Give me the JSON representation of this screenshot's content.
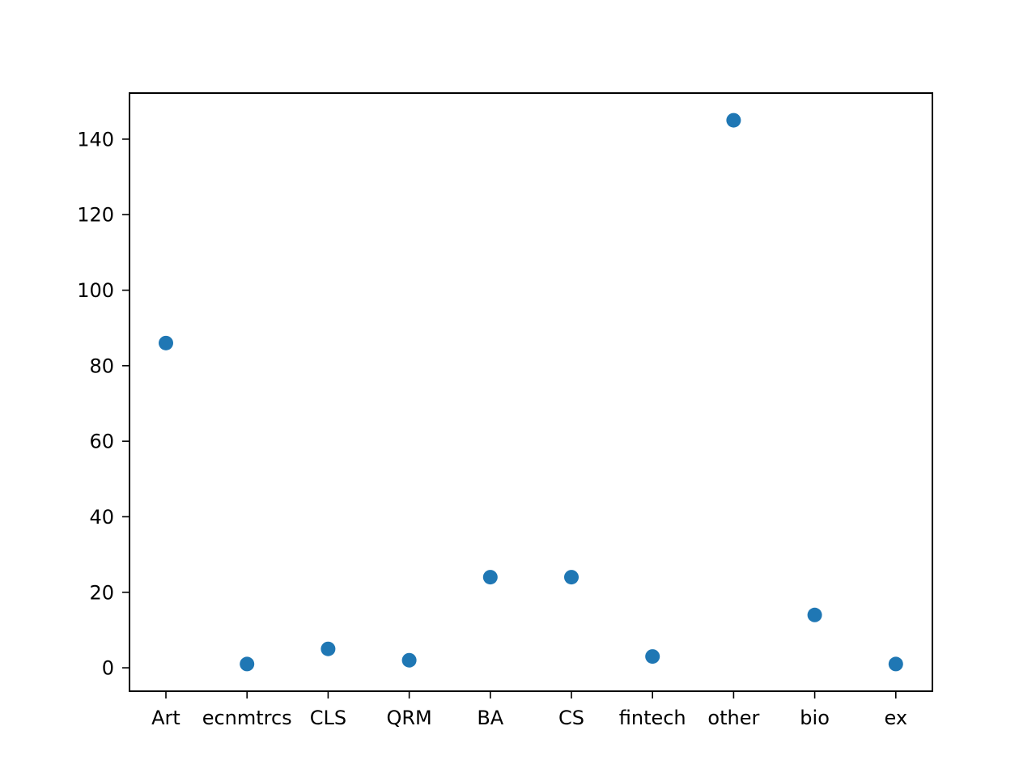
{
  "chart_data": {
    "type": "scatter",
    "categories": [
      "Art",
      "ecnmtrcs",
      "CLS",
      "QRM",
      "BA",
      "CS",
      "fintech",
      "other",
      "bio",
      "ex"
    ],
    "values": [
      86,
      1,
      5,
      2,
      24,
      24,
      3,
      145,
      14,
      1
    ],
    "yticks": [
      0,
      20,
      40,
      60,
      80,
      100,
      120,
      140
    ],
    "ylim": [
      -6.2,
      152.2
    ],
    "grid": false,
    "marker_color": "#1f77b4",
    "title": "",
    "xlabel": "",
    "ylabel": ""
  }
}
